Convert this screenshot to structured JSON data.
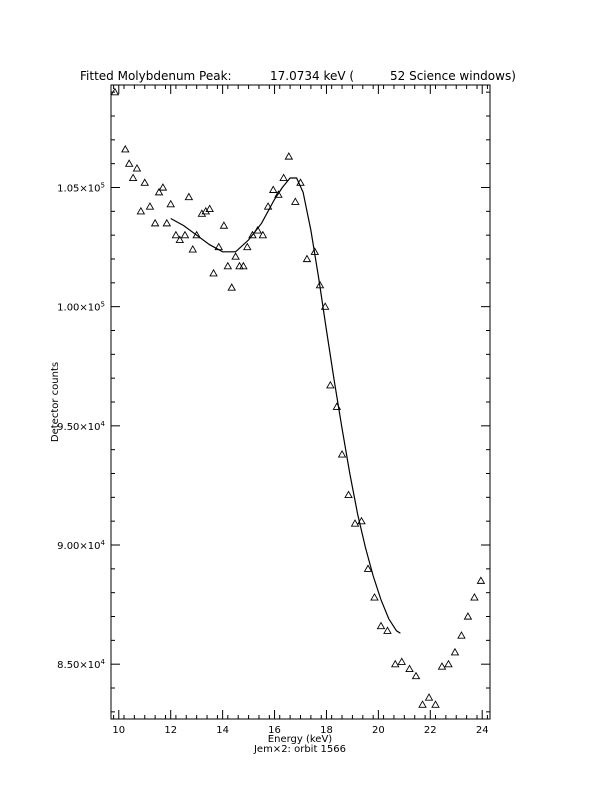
{
  "chart_data": {
    "type": "scatter",
    "title": "Fitted Molybdenum Peak:",
    "title_value": "17.0734 keV (",
    "title_windows": "52 Science windows)",
    "xlabel": "Energy (keV)",
    "ylabel": "Detector counts",
    "footer": "Jem×2: orbit 1566",
    "xlim": [
      9.7,
      24.3
    ],
    "ylim": [
      82700,
      109300
    ],
    "x_ticks": [
      10,
      12,
      14,
      16,
      18,
      20,
      22,
      24
    ],
    "x_tick_labels": [
      "10",
      "12",
      "14",
      "16",
      "18",
      "20",
      "22",
      "24"
    ],
    "y_ticks": [
      85000,
      90000,
      95000,
      100000,
      105000
    ],
    "y_tick_labels": [
      {
        "mantissa": "8.50×10",
        "exp": "4"
      },
      {
        "mantissa": "9.00×10",
        "exp": "4"
      },
      {
        "mantissa": "9.50×10",
        "exp": "4"
      },
      {
        "mantissa": "1.00×10",
        "exp": "5"
      },
      {
        "mantissa": "1.05×10",
        "exp": "5"
      }
    ],
    "grid": false,
    "legend": "none",
    "series": [
      {
        "marker": "triangle",
        "x": [
          9.85,
          10.05,
          10.25,
          10.4,
          10.55,
          10.7,
          10.85,
          11.0,
          11.2,
          11.4,
          11.55,
          11.7,
          11.85,
          12.0,
          12.2,
          12.35,
          12.55,
          12.7,
          12.85,
          13.0,
          13.2,
          13.35,
          13.5,
          13.65,
          13.85,
          14.05,
          14.2,
          14.35,
          14.5,
          14.65,
          14.8,
          14.95,
          15.15,
          15.35,
          15.55,
          15.75,
          15.95,
          16.15,
          16.35,
          16.55,
          16.8,
          17.0,
          17.25,
          17.55,
          17.75,
          17.95,
          18.15,
          18.4,
          18.6,
          18.85,
          19.1,
          19.35,
          19.6,
          19.85,
          20.1,
          20.35,
          20.65,
          20.9,
          21.2,
          21.45,
          21.7,
          21.95,
          22.2,
          22.45,
          22.7,
          22.95,
          23.2,
          23.45,
          23.7,
          23.95
        ],
        "y": [
          109000,
          109400,
          106600,
          106000,
          105400,
          105800,
          104000,
          105200,
          104200,
          103500,
          104800,
          105000,
          103500,
          104300,
          103000,
          102800,
          103000,
          104600,
          102400,
          103000,
          103900,
          104000,
          104100,
          101400,
          102500,
          103400,
          101700,
          100800,
          102100,
          101700,
          101700,
          102500,
          103000,
          103200,
          103000,
          104200,
          104900,
          104700,
          105400,
          106300,
          104400,
          105200,
          102000,
          102300,
          100900,
          100000,
          96700,
          95800,
          93800,
          92100,
          90900,
          91000,
          89000,
          87800,
          86600,
          86400,
          85000,
          85100,
          84800,
          84500,
          83300,
          83600,
          83300,
          84900,
          85000,
          85500,
          86200,
          87000,
          87800,
          88500
        ]
      },
      {
        "marker": "line",
        "x": [
          12.0,
          12.5,
          13.0,
          13.5,
          14.0,
          14.5,
          15.0,
          15.5,
          16.0,
          16.3,
          16.6,
          16.85,
          17.1,
          17.4,
          17.7,
          18.0,
          18.3,
          18.6,
          18.9,
          19.2,
          19.5,
          19.8,
          20.1,
          20.4,
          20.7,
          20.85
        ],
        "y": [
          103700,
          103400,
          103000,
          102600,
          102300,
          102300,
          102800,
          103500,
          104500,
          105000,
          105400,
          105400,
          104800,
          103200,
          101200,
          99000,
          96900,
          94900,
          93000,
          91300,
          89900,
          88700,
          87700,
          86900,
          86400,
          86300
        ]
      }
    ]
  }
}
